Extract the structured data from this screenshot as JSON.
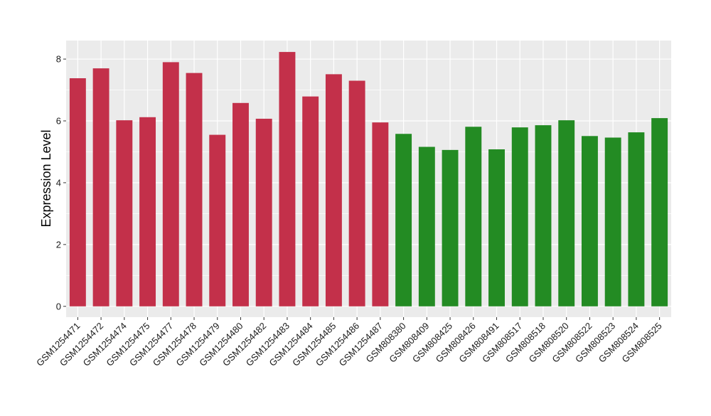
{
  "chart_data": {
    "type": "bar",
    "ylabel": "Expression Level",
    "xlabel": "",
    "title": "",
    "ylim": [
      -0.35,
      8.6
    ],
    "yticks": [
      0,
      2,
      4,
      6,
      8
    ],
    "grid": true,
    "categories": [
      "GSM1254471",
      "GSM1254472",
      "GSM1254474",
      "GSM1254475",
      "GSM1254477",
      "GSM1254478",
      "GSM1254479",
      "GSM1254480",
      "GSM1254482",
      "GSM1254483",
      "GSM1254484",
      "GSM1254485",
      "GSM1254486",
      "GSM1254487",
      "GSM808380",
      "GSM808409",
      "GSM808425",
      "GSM808426",
      "GSM808491",
      "GSM808517",
      "GSM808518",
      "GSM808520",
      "GSM808522",
      "GSM808523",
      "GSM808524",
      "GSM808525"
    ],
    "values": [
      7.38,
      7.7,
      6.02,
      6.12,
      7.9,
      7.55,
      5.55,
      6.58,
      6.07,
      8.23,
      6.79,
      7.51,
      7.3,
      5.95,
      5.58,
      5.16,
      5.06,
      5.81,
      5.08,
      5.79,
      5.86,
      6.02,
      5.51,
      5.46,
      5.63,
      6.09
    ],
    "group_colors": [
      "#c3304a",
      "#238b23"
    ],
    "group_index": [
      0,
      0,
      0,
      0,
      0,
      0,
      0,
      0,
      0,
      0,
      0,
      0,
      0,
      0,
      1,
      1,
      1,
      1,
      1,
      1,
      1,
      1,
      1,
      1,
      1,
      1
    ],
    "panel_background": "#ebebeb",
    "grid_color": "#ffffff"
  }
}
